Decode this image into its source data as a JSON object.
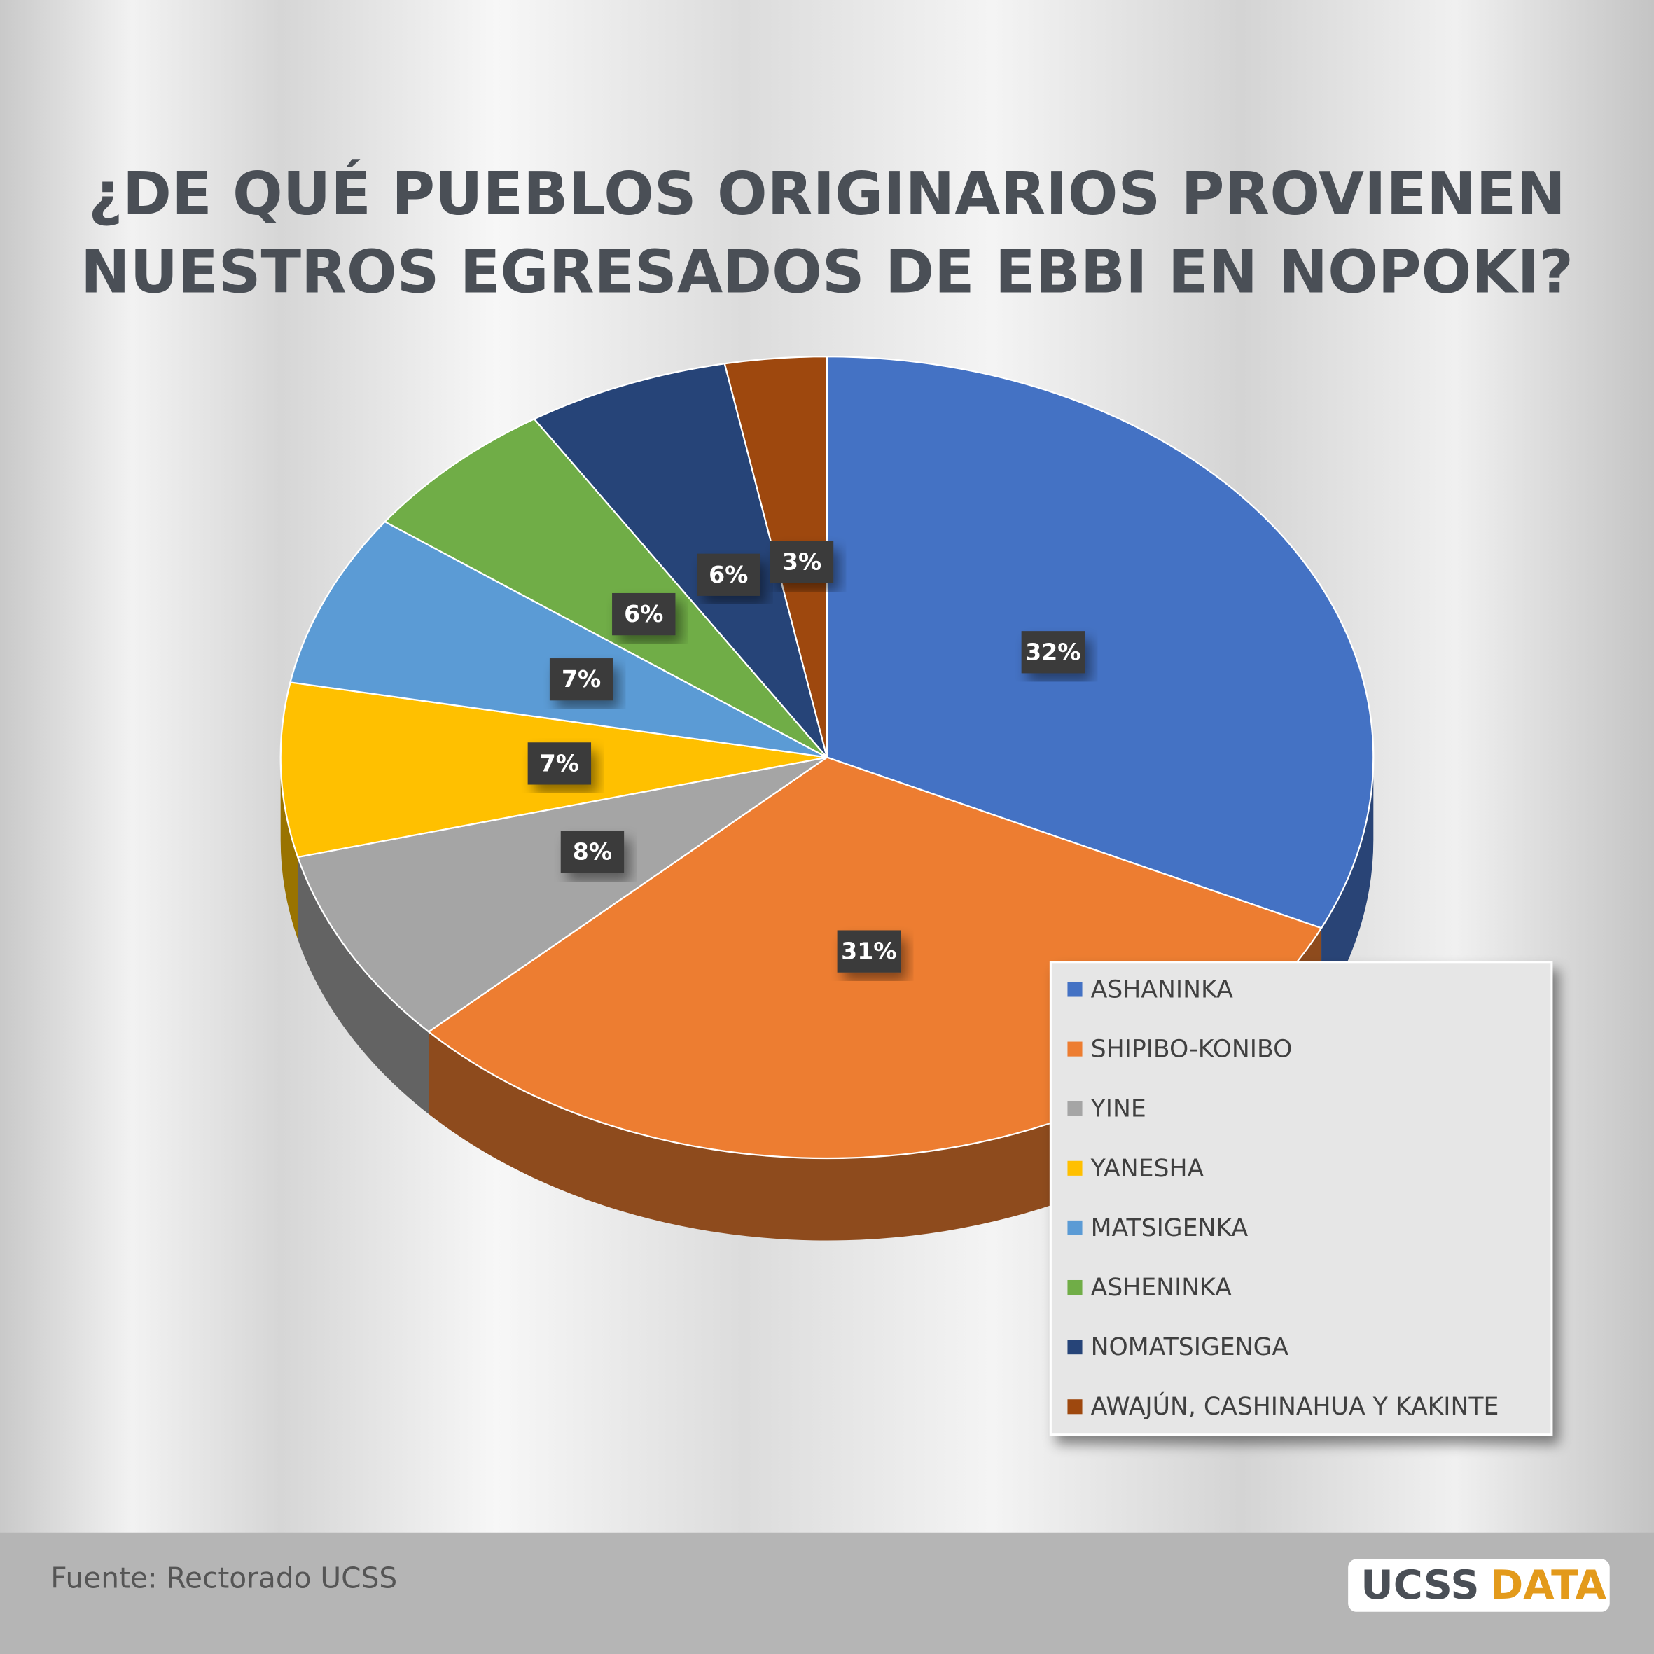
{
  "chart_data": {
    "type": "pie",
    "title": [
      "¿DE QUÉ PUEBLOS ORIGINARIOS PROVIENEN",
      "NUESTROS EGRESADOS DE EBBI EN NOPOKI?"
    ],
    "categories": [
      "ASHANINKA",
      "SHIPIBO-KONIBO",
      "YINE",
      "YANESHA",
      "MATSIGENKA",
      "ASHENINKA",
      "NOMATSIGENGA",
      "AWAJÚN, CASHINAHUA Y KAKINTE"
    ],
    "values": [
      32,
      31,
      8,
      7,
      7,
      6,
      6,
      3
    ],
    "value_labels": [
      "32%",
      "31%",
      "8%",
      "7%",
      "7%",
      "6%",
      "6%",
      "3%"
    ],
    "colors": [
      "#4472c4",
      "#ed7d31",
      "#a5a5a5",
      "#ffc000",
      "#5b9bd5",
      "#70ad47",
      "#264478",
      "#9e480e"
    ],
    "legend": "right-bottom"
  },
  "footer": {
    "source": "Fuente: Rectorado UCSS",
    "logo": [
      "UCSS",
      "DATA"
    ]
  }
}
